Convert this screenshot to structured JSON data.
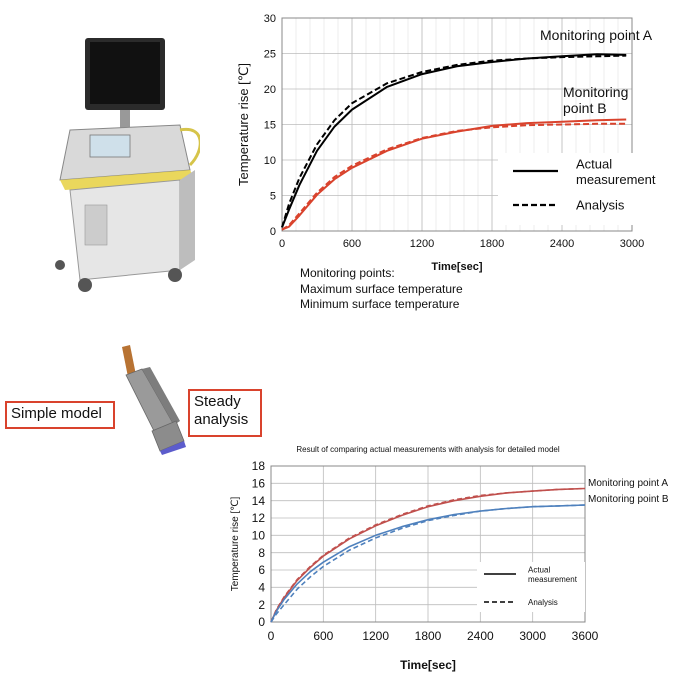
{
  "notes": {
    "heading": "Monitoring points:",
    "line1": "Maximum surface temperature",
    "line2": "Minimum surface temperature"
  },
  "labels": {
    "simple_model": "Simple model",
    "steady_analysis": "Steady analysis"
  },
  "colors": {
    "black": "#000000",
    "red": "#d9432d",
    "dark_red": "#c0504d",
    "blue": "#4f81bd",
    "grid": "#bdbdbd",
    "probe_body": "#8c8c8c",
    "probe_tip": "#5c5ccc",
    "cable": "#b87333"
  },
  "images": {
    "machine": "ultrasound-machine-icon",
    "probe": "ultrasound-probe-icon"
  },
  "chart_data": [
    {
      "type": "line",
      "title": "",
      "xlabel": "Time[sec]",
      "ylabel": "Temperature rise [℃]",
      "xlim": [
        0,
        3000
      ],
      "ylim": [
        0,
        30
      ],
      "xticks": [
        0,
        600,
        1200,
        1800,
        2400,
        3000
      ],
      "yticks": [
        0,
        5,
        10,
        15,
        20,
        25,
        30
      ],
      "grid": true,
      "legend": {
        "position": "right",
        "entries": [
          {
            "label": "Actual measurement",
            "style": "solid"
          },
          {
            "label": "Analysis",
            "style": "dashed"
          }
        ]
      },
      "annotations": [
        "Monitoring point A",
        "Monitoring point B"
      ],
      "x": [
        0,
        60,
        150,
        300,
        450,
        600,
        900,
        1200,
        1500,
        1800,
        2100,
        2400,
        2700,
        2950
      ],
      "series": [
        {
          "name": "Monitoring point A",
          "style": "solid",
          "color": "#000000",
          "values": [
            0.5,
            3.0,
            6.5,
            11.3,
            14.7,
            17.1,
            20.3,
            22.1,
            23.2,
            23.8,
            24.3,
            24.6,
            24.9,
            24.8
          ]
        },
        {
          "name": "Monitoring point A",
          "style": "dashed",
          "color": "#000000",
          "values": [
            0.5,
            3.8,
            7.5,
            12.2,
            15.6,
            18.0,
            20.8,
            22.4,
            23.4,
            24.0,
            24.3,
            24.5,
            24.6,
            24.7
          ]
        },
        {
          "name": "Monitoring point B",
          "style": "solid",
          "color": "#d9432d",
          "values": [
            0.2,
            0.6,
            2.2,
            5.1,
            7.3,
            8.9,
            11.3,
            13.0,
            14.0,
            14.8,
            15.2,
            15.4,
            15.6,
            15.7
          ]
        },
        {
          "name": "Monitoring point B",
          "style": "dashed",
          "color": "#d9432d",
          "values": [
            0.2,
            0.8,
            2.5,
            5.4,
            7.6,
            9.2,
            11.5,
            13.1,
            14.1,
            14.6,
            14.9,
            15.0,
            15.1,
            15.1
          ]
        }
      ]
    },
    {
      "type": "line",
      "title": "Result of comparing actual measurements with analysis for detailed model",
      "xlabel": "Time[sec]",
      "ylabel": "Temperature rise [℃]",
      "xlim": [
        0,
        3600
      ],
      "ylim": [
        0,
        18
      ],
      "xticks": [
        0,
        600,
        1200,
        1800,
        2400,
        3000,
        3600
      ],
      "yticks": [
        0,
        2,
        4,
        6,
        8,
        10,
        12,
        14,
        16,
        18
      ],
      "grid": true,
      "legend": {
        "position": "right",
        "entries": [
          {
            "label": "Actual measurement",
            "style": "solid"
          },
          {
            "label": "Analysis",
            "style": "dashed"
          }
        ]
      },
      "annotations": [
        "Monitoring point A",
        "Monitoring point B"
      ],
      "x": [
        0,
        60,
        150,
        300,
        450,
        600,
        900,
        1200,
        1500,
        1800,
        2100,
        2400,
        2700,
        3000,
        3300,
        3600
      ],
      "series": [
        {
          "name": "Monitoring point A",
          "style": "solid",
          "color": "#c0504d",
          "values": [
            0,
            1.3,
            2.8,
            4.8,
            6.3,
            7.6,
            9.6,
            11.1,
            12.3,
            13.3,
            14.0,
            14.5,
            14.9,
            15.1,
            15.3,
            15.4
          ]
        },
        {
          "name": "Monitoring point A",
          "style": "dashed",
          "color": "#c0504d",
          "values": [
            0,
            1.4,
            2.9,
            4.9,
            6.4,
            7.7,
            9.7,
            11.2,
            12.4,
            13.4,
            14.1,
            14.6,
            14.9,
            15.1,
            15.3,
            15.4
          ]
        },
        {
          "name": "Monitoring point B",
          "style": "solid",
          "color": "#4f81bd",
          "values": [
            0,
            1.2,
            2.6,
            4.4,
            5.8,
            6.9,
            8.7,
            10.0,
            11.0,
            11.8,
            12.4,
            12.8,
            13.1,
            13.3,
            13.4,
            13.5
          ]
        },
        {
          "name": "Monitoring point B",
          "style": "dashed",
          "color": "#4f81bd",
          "values": [
            0,
            0.9,
            2.0,
            3.8,
            5.2,
            6.4,
            8.3,
            9.7,
            10.8,
            11.7,
            12.3,
            12.8,
            13.1,
            13.3,
            13.4,
            13.5
          ]
        }
      ]
    }
  ]
}
